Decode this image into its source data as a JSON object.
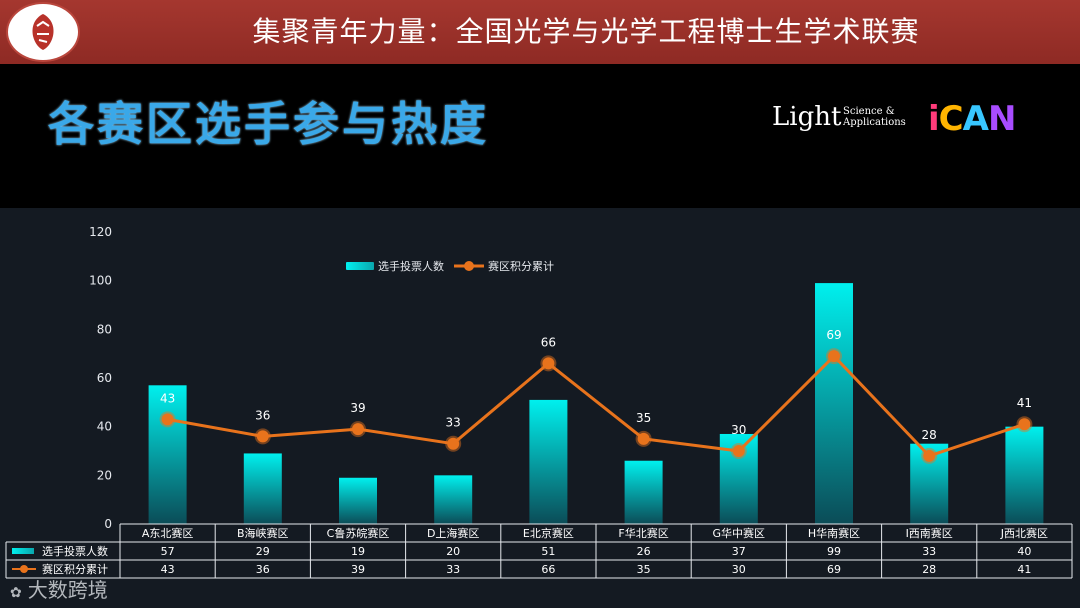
{
  "banner": {
    "title": "集聚青年力量：全国光学与光学工程博士生学术联赛"
  },
  "slide": {
    "title": "各赛区选手参与热度"
  },
  "logos": {
    "light_word": "Light",
    "light_sub1": "Science &",
    "light_sub2": "Applications",
    "ican": "iCAN"
  },
  "watermark": "大数跨境",
  "colors": {
    "bar_top": "#00f0ee",
    "bar_bottom": "#0b4c57",
    "line": "#e8731c",
    "banner": "#a5372f",
    "title": "#3aa8e8"
  },
  "chart_data": {
    "type": "bar",
    "categories": [
      "A东北赛区",
      "B海峡赛区",
      "C鲁苏皖赛区",
      "D上海赛区",
      "E北京赛区",
      "F华北赛区",
      "G华中赛区",
      "H华南赛区",
      "I西南赛区",
      "J西北赛区"
    ],
    "series": [
      {
        "name": "选手投票人数",
        "type": "bar",
        "values": [
          57,
          29,
          19,
          20,
          51,
          26,
          37,
          99,
          33,
          40
        ]
      },
      {
        "name": "赛区积分累计",
        "type": "line",
        "values": [
          43,
          36,
          39,
          33,
          66,
          35,
          30,
          69,
          28,
          41
        ]
      }
    ],
    "y_ticks": [
      "0",
      "20",
      "40",
      "60",
      "80",
      "100",
      "120"
    ],
    "ylim": [
      0,
      120
    ],
    "legend": "top-center",
    "data_table": true
  }
}
